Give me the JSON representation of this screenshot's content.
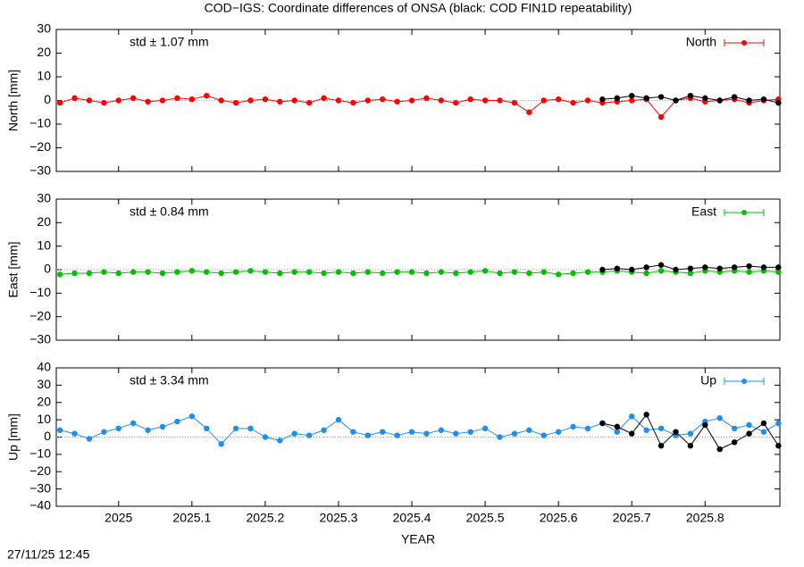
{
  "timestamp": "27/11/25 12:45",
  "chart_data": [
    {
      "type": "line",
      "title": "COD−IGS: Coordinate differences of ONSA (black: COD FIN1D repeatability)",
      "ylabel": "North [mm]",
      "annotation": "std ± 1.07 mm",
      "legend": "upper right",
      "tick_labels": false,
      "x": [
        2024.92,
        2024.94,
        2024.96,
        2024.98,
        2025.0,
        2025.02,
        2025.04,
        2025.06,
        2025.08,
        2025.1,
        2025.12,
        2025.14,
        2025.16,
        2025.18,
        2025.2,
        2025.22,
        2025.24,
        2025.26,
        2025.28,
        2025.3,
        2025.32,
        2025.34,
        2025.36,
        2025.38,
        2025.4,
        2025.42,
        2025.44,
        2025.46,
        2025.48,
        2025.5,
        2025.52,
        2025.54,
        2025.56,
        2025.58,
        2025.6,
        2025.62,
        2025.64,
        2025.66,
        2025.68,
        2025.7,
        2025.72,
        2025.74,
        2025.76,
        2025.78,
        2025.8,
        2025.82,
        2025.84,
        2025.86,
        2025.88,
        2025.9
      ],
      "series": [
        {
          "name": "North",
          "color": "#ff0000",
          "values": [
            -1,
            1,
            0,
            -1,
            0,
            1,
            -0.5,
            0,
            1,
            0.5,
            2,
            0,
            -1,
            0,
            0.5,
            -0.5,
            0,
            -1,
            1,
            0,
            -1,
            0,
            0.5,
            -0.5,
            0,
            1,
            0,
            -1,
            0.5,
            0,
            0,
            -1,
            -5,
            0,
            0.5,
            -1,
            0,
            -1,
            -0.5,
            0,
            0.5,
            -7,
            0,
            1,
            -0.5,
            0,
            0.5,
            -1,
            0,
            0.5
          ]
        },
        {
          "color": "#000000",
          "values": [
            null,
            null,
            null,
            null,
            null,
            null,
            null,
            null,
            null,
            null,
            null,
            null,
            null,
            null,
            null,
            null,
            null,
            null,
            null,
            null,
            null,
            null,
            null,
            null,
            null,
            null,
            null,
            null,
            null,
            null,
            null,
            null,
            null,
            null,
            null,
            null,
            null,
            0.5,
            1,
            2,
            1,
            1.5,
            0,
            2,
            1,
            0,
            1.5,
            0,
            0.5,
            -1
          ]
        }
      ],
      "xlim": [
        2024.915,
        2025.902
      ],
      "xticks": [
        2025,
        2025.1,
        2025.2,
        2025.3,
        2025.4,
        2025.5,
        2025.6,
        2025.7,
        2025.8
      ],
      "ylim": [
        -30,
        30
      ],
      "yticks": [
        {
          "value": -30,
          "label": "−30"
        },
        {
          "value": -20,
          "label": "−20"
        },
        {
          "value": -10,
          "label": "−10"
        },
        0,
        10,
        20,
        30
      ]
    },
    {
      "type": "line",
      "ylabel": "East [mm]",
      "annotation": "std ± 0.84 mm",
      "legend": "upper right",
      "tick_labels": false,
      "x": [
        2024.92,
        2024.94,
        2024.96,
        2024.98,
        2025.0,
        2025.02,
        2025.04,
        2025.06,
        2025.08,
        2025.1,
        2025.12,
        2025.14,
        2025.16,
        2025.18,
        2025.2,
        2025.22,
        2025.24,
        2025.26,
        2025.28,
        2025.3,
        2025.32,
        2025.34,
        2025.36,
        2025.38,
        2025.4,
        2025.42,
        2025.44,
        2025.46,
        2025.48,
        2025.5,
        2025.52,
        2025.54,
        2025.56,
        2025.58,
        2025.6,
        2025.62,
        2025.64,
        2025.66,
        2025.68,
        2025.7,
        2025.72,
        2025.74,
        2025.76,
        2025.78,
        2025.8,
        2025.82,
        2025.84,
        2025.86,
        2025.88,
        2025.9
      ],
      "series": [
        {
          "name": "East",
          "color": "#00c000",
          "values": [
            -2,
            -1.5,
            -1.5,
            -1,
            -1.5,
            -1,
            -1,
            -1.5,
            -1,
            -0.5,
            -1,
            -1.5,
            -1,
            -0.5,
            -1,
            -1.5,
            -1,
            -1,
            -1.5,
            -1,
            -1.5,
            -1,
            -1.5,
            -1,
            -1,
            -1.5,
            -1,
            -1.5,
            -1,
            -0.5,
            -1.5,
            -1,
            -1.5,
            -1,
            -2,
            -1.5,
            -1,
            -1,
            -0.5,
            -1,
            -1.5,
            -0.5,
            -1,
            -1.5,
            -0.5,
            -1,
            -0.5,
            -1,
            -0.5,
            -1
          ]
        },
        {
          "color": "#000000",
          "values": [
            null,
            null,
            null,
            null,
            null,
            null,
            null,
            null,
            null,
            null,
            null,
            null,
            null,
            null,
            null,
            null,
            null,
            null,
            null,
            null,
            null,
            null,
            null,
            null,
            null,
            null,
            null,
            null,
            null,
            null,
            null,
            null,
            null,
            null,
            null,
            null,
            null,
            0,
            0.5,
            0,
            1,
            2,
            0,
            0.5,
            1,
            0.5,
            1,
            1.5,
            1,
            1
          ]
        }
      ],
      "xlim": [
        2024.915,
        2025.902
      ],
      "xticks": [
        2025,
        2025.1,
        2025.2,
        2025.3,
        2025.4,
        2025.5,
        2025.6,
        2025.7,
        2025.8
      ],
      "ylim": [
        -30,
        30
      ],
      "yticks": [
        {
          "value": -30,
          "label": "−30"
        },
        {
          "value": -20,
          "label": "−20"
        },
        {
          "value": -10,
          "label": "−10"
        },
        0,
        10,
        20,
        30
      ]
    },
    {
      "type": "line",
      "ylabel": "Up [mm]",
      "xlabel": "YEAR",
      "annotation": "std ± 3.34 mm",
      "legend": "upper right",
      "tick_labels": true,
      "x": [
        2024.92,
        2024.94,
        2024.96,
        2024.98,
        2025.0,
        2025.02,
        2025.04,
        2025.06,
        2025.08,
        2025.1,
        2025.12,
        2025.14,
        2025.16,
        2025.18,
        2025.2,
        2025.22,
        2025.24,
        2025.26,
        2025.28,
        2025.3,
        2025.32,
        2025.34,
        2025.36,
        2025.38,
        2025.4,
        2025.42,
        2025.44,
        2025.46,
        2025.48,
        2025.5,
        2025.52,
        2025.54,
        2025.56,
        2025.58,
        2025.6,
        2025.62,
        2025.64,
        2025.66,
        2025.68,
        2025.7,
        2025.72,
        2025.74,
        2025.76,
        2025.78,
        2025.8,
        2025.82,
        2025.84,
        2025.86,
        2025.88,
        2025.9
      ],
      "series": [
        {
          "name": "Up",
          "color": "#1e8ff0",
          "values": [
            4,
            2,
            -1,
            3,
            5,
            8,
            4,
            6,
            9,
            12,
            5,
            -4,
            5,
            5,
            0,
            -2,
            2,
            1,
            4,
            10,
            3,
            1,
            3,
            1,
            3,
            2,
            4,
            2,
            3,
            5,
            0,
            2,
            4,
            1,
            3,
            6,
            5,
            8,
            3,
            12,
            4,
            5,
            1,
            2,
            9,
            11,
            5,
            7,
            3,
            8
          ]
        },
        {
          "color": "#000000",
          "values": [
            null,
            null,
            null,
            null,
            null,
            null,
            null,
            null,
            null,
            null,
            null,
            null,
            null,
            null,
            null,
            null,
            null,
            null,
            null,
            null,
            null,
            null,
            null,
            null,
            null,
            null,
            null,
            null,
            null,
            null,
            null,
            null,
            null,
            null,
            null,
            null,
            null,
            8,
            6,
            2,
            13,
            -5,
            3,
            -5,
            7,
            -7,
            -3,
            2,
            8,
            -5
          ]
        }
      ],
      "xlim": [
        2024.915,
        2025.902
      ],
      "xticks": [
        2025,
        2025.1,
        2025.2,
        2025.3,
        2025.4,
        2025.5,
        2025.6,
        2025.7,
        2025.8
      ],
      "ylim": [
        -40,
        40
      ],
      "yticks": [
        {
          "value": -40,
          "label": "−40"
        },
        {
          "value": -30,
          "label": "−30"
        },
        {
          "value": -20,
          "label": "−20"
        },
        {
          "value": -10,
          "label": "−10"
        },
        0,
        10,
        20,
        30,
        40
      ]
    }
  ]
}
